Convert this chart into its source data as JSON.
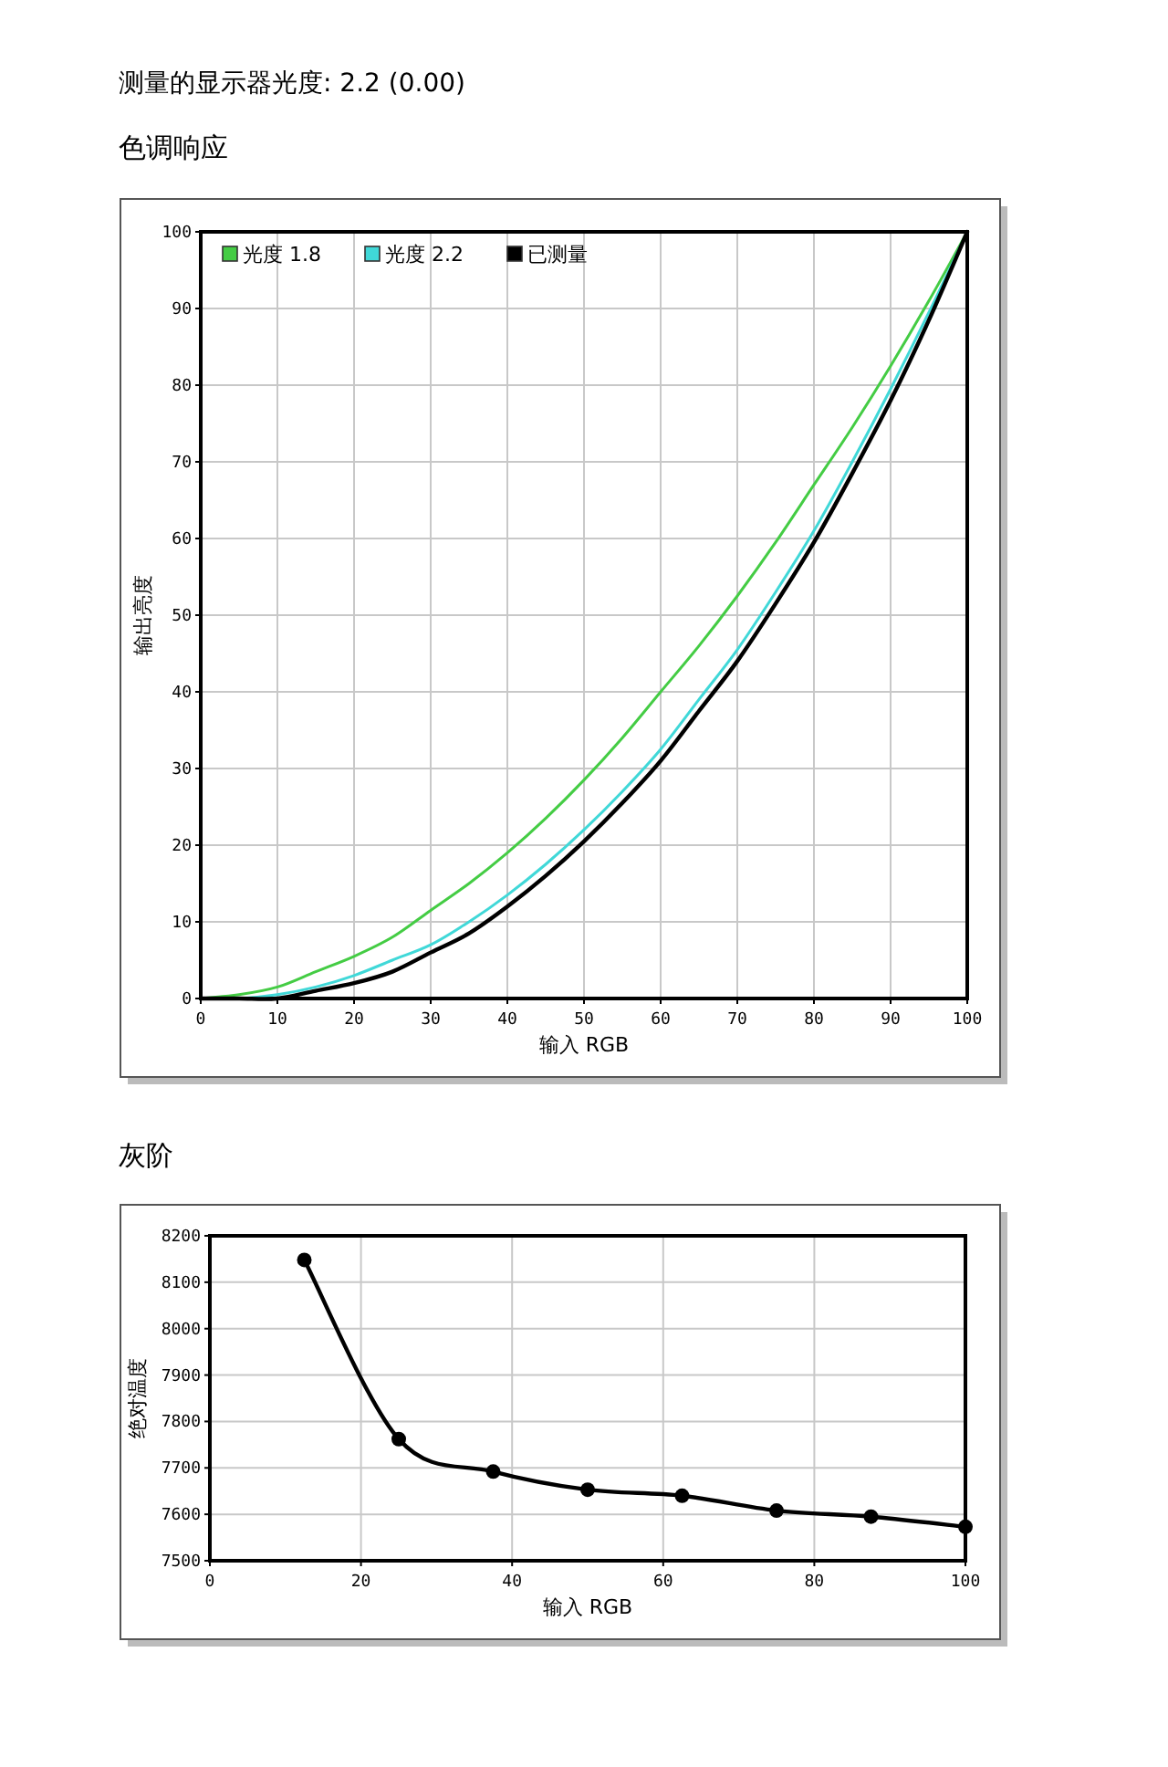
{
  "chart_data": [
    {
      "type": "line",
      "title": "色调响应",
      "annotations": [
        "测量的显示器光度:  2.2 (0.00)"
      ],
      "xlabel": "输入 RGB",
      "ylabel": "输出亮度",
      "x": [
        0,
        5,
        10,
        15,
        20,
        25,
        30,
        35,
        40,
        45,
        50,
        55,
        60,
        65,
        70,
        75,
        80,
        85,
        90,
        95,
        100
      ],
      "series": [
        {
          "name": "光度 1.8",
          "color": "#44cc44",
          "values": [
            0,
            0.5,
            1.5,
            3.5,
            5.5,
            8,
            11.5,
            15,
            19,
            23.5,
            28.5,
            34,
            40,
            46,
            52.5,
            59.5,
            67,
            74.5,
            82.5,
            91,
            100
          ]
        },
        {
          "name": "光度 2.2",
          "color": "#40d8d8",
          "values": [
            0,
            0,
            0.5,
            1.5,
            3,
            5,
            7,
            10,
            13.5,
            17.5,
            22,
            27,
            32.5,
            39,
            45.5,
            53,
            61,
            70,
            79.5,
            89.5,
            100
          ]
        },
        {
          "name": "已测量",
          "color": "#000000",
          "values": [
            0,
            0,
            0,
            1,
            2,
            3.5,
            6,
            8.5,
            12,
            16,
            20.5,
            25.5,
            31,
            37.5,
            44,
            51.5,
            59.5,
            68.5,
            78,
            88.5,
            100
          ]
        }
      ],
      "xlim": [
        0,
        100
      ],
      "xticks": [
        0,
        10,
        20,
        30,
        40,
        50,
        60,
        70,
        80,
        90,
        100
      ],
      "ylim": [
        0,
        100
      ],
      "yticks": [
        0,
        10,
        20,
        30,
        40,
        50,
        60,
        70,
        80,
        90,
        100
      ],
      "grid": true,
      "legend": "top left",
      "marker": "none",
      "line_style": "solid"
    },
    {
      "type": "line",
      "title": "灰阶",
      "xlabel": "输入 RGB",
      "ylabel": "绝对温度",
      "x": [
        12.5,
        25,
        37.5,
        50,
        62.5,
        75,
        87.5,
        100
      ],
      "series": [
        {
          "color": "#000000",
          "values": [
            8148,
            7762,
            7692,
            7653,
            7640,
            7608,
            7595,
            7573
          ]
        }
      ],
      "xlim": [
        0,
        100
      ],
      "xticks": [
        0,
        20,
        40,
        60,
        80,
        100
      ],
      "ylim": [
        7500,
        8200
      ],
      "yticks": [
        7500,
        7600,
        7700,
        7800,
        7900,
        8000,
        8100,
        8200
      ],
      "grid": true,
      "marker": "circle",
      "line_style": "solid"
    }
  ]
}
